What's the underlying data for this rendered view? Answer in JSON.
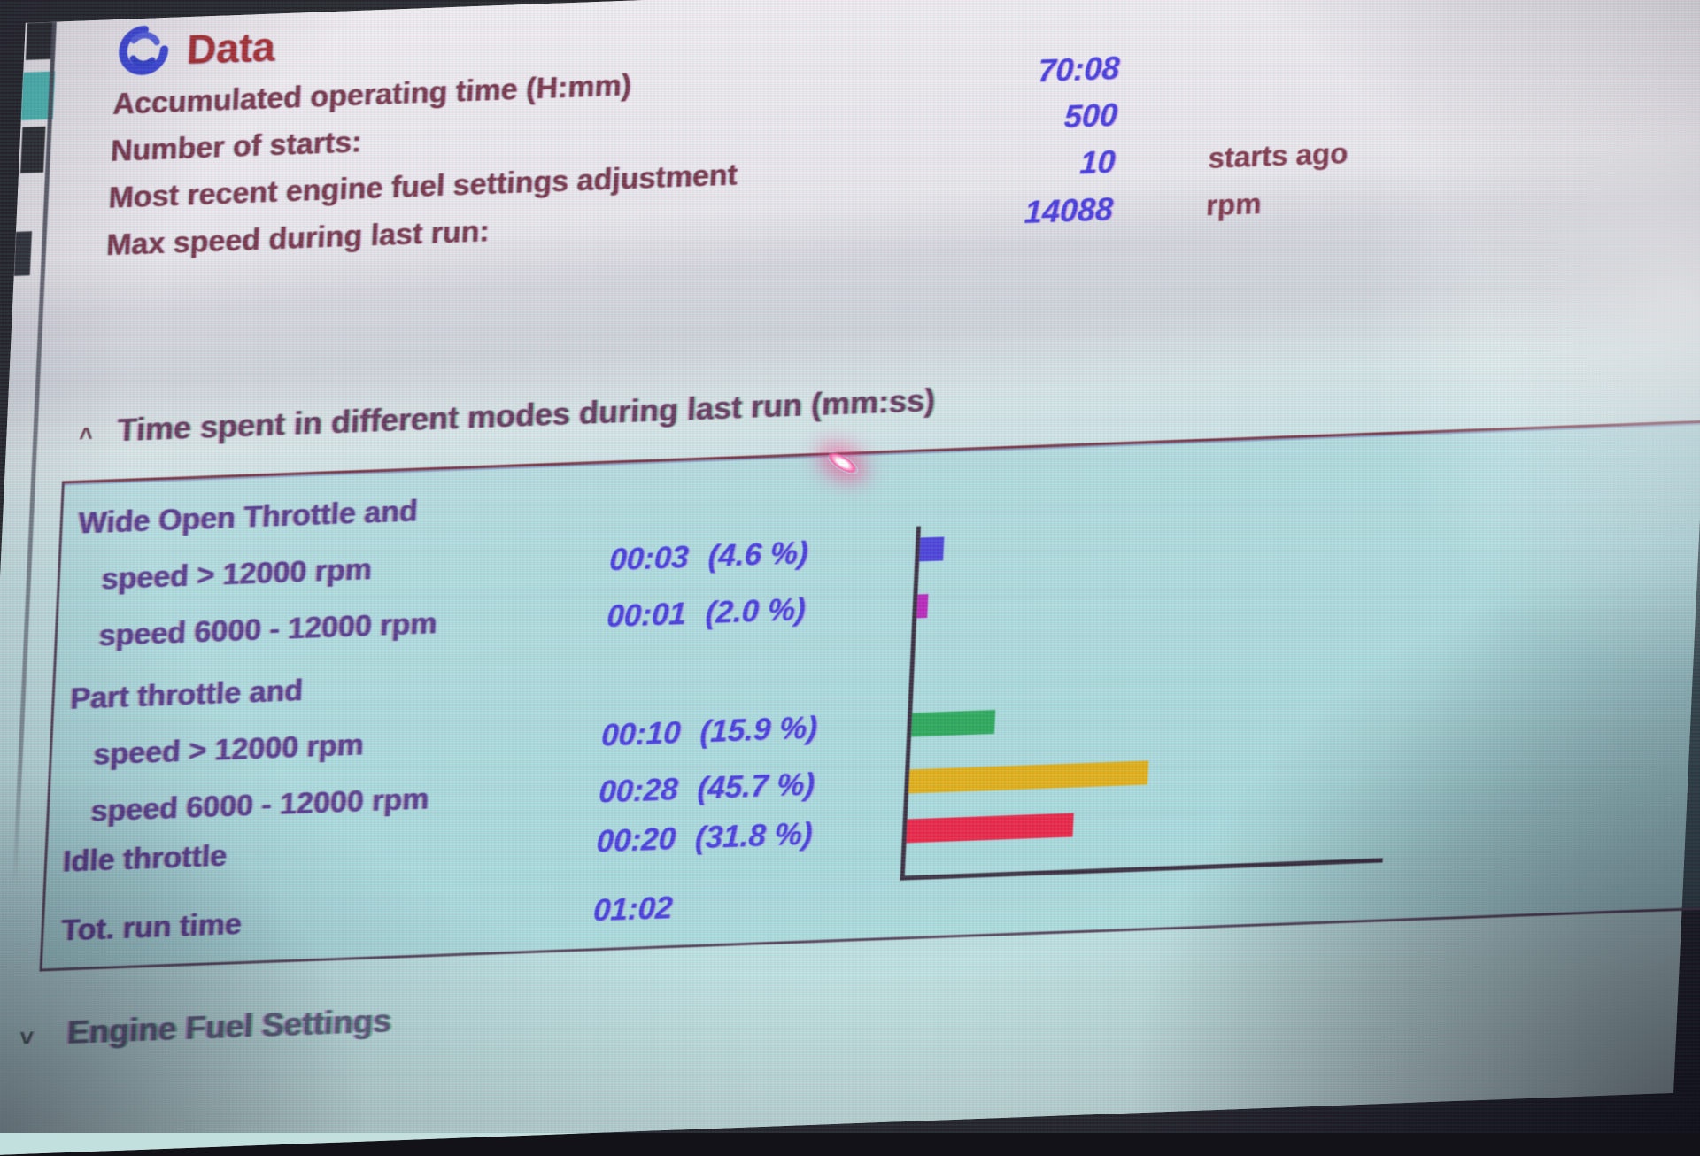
{
  "header": {
    "icon": "swirl-data-icon",
    "title": "Data"
  },
  "stats": {
    "rows": [
      {
        "label": "Accumulated operating time (H:mm)",
        "value": "70:08",
        "unit": ""
      },
      {
        "label": "Number of starts:",
        "value": "500",
        "unit": ""
      },
      {
        "label": "Most recent engine fuel settings adjustment",
        "value": "10",
        "unit": "starts ago"
      },
      {
        "label": "Max speed during last run:",
        "value": "14088",
        "unit": "rpm"
      }
    ]
  },
  "modes_section": {
    "collapse_icon": "˄",
    "title": "Time spent in different modes during last run (mm:ss)",
    "rows": [
      {
        "label": "Wide Open Throttle and",
        "indent": 0,
        "time": "",
        "pct": ""
      },
      {
        "label": "speed > 12000 rpm",
        "indent": 1,
        "time": "00:03",
        "pct": "(4.6 %)"
      },
      {
        "label": "speed 6000 - 12000 rpm",
        "indent": 1,
        "time": "00:01",
        "pct": "(2.0 %)"
      },
      {
        "label": "Part throttle and",
        "indent": 0,
        "time": "",
        "pct": ""
      },
      {
        "label": "speed > 12000 rpm",
        "indent": 1,
        "time": "00:10",
        "pct": "(15.9 %)"
      },
      {
        "label": "speed 6000 - 12000 rpm",
        "indent": 1,
        "time": "00:28",
        "pct": "(45.7 %)"
      },
      {
        "label": "Idle throttle",
        "indent": 0,
        "time": "00:20",
        "pct": "(31.8 %)"
      }
    ],
    "total": {
      "label": "Tot. run time",
      "time": "01:02"
    }
  },
  "fuel_section": {
    "collapse_icon": "˅",
    "title": "Engine Fuel Settings"
  },
  "chart_data": {
    "type": "bar",
    "orientation": "horizontal",
    "title": "Time spent in different modes during last run (mm:ss)",
    "categories": [
      "Wide Open Throttle, speed > 12000 rpm",
      "Wide Open Throttle, speed 6000 - 12000 rpm",
      "Part throttle, speed > 12000 rpm",
      "Part throttle, speed 6000 - 12000 rpm",
      "Idle throttle"
    ],
    "values": [
      4.6,
      2.0,
      15.9,
      45.7,
      31.8
    ],
    "times": [
      "00:03",
      "00:01",
      "00:10",
      "00:28",
      "00:20"
    ],
    "unit": "%",
    "xlim": [
      0,
      100
    ],
    "grid": false,
    "legend": "none",
    "colors": [
      "#3f33d6",
      "#b516b5",
      "#1ea14e",
      "#dfa705",
      "#e91338"
    ],
    "axis_color": "#2c1c30"
  },
  "artifacts": {
    "laser_glare_color": "#ff4fa0"
  }
}
